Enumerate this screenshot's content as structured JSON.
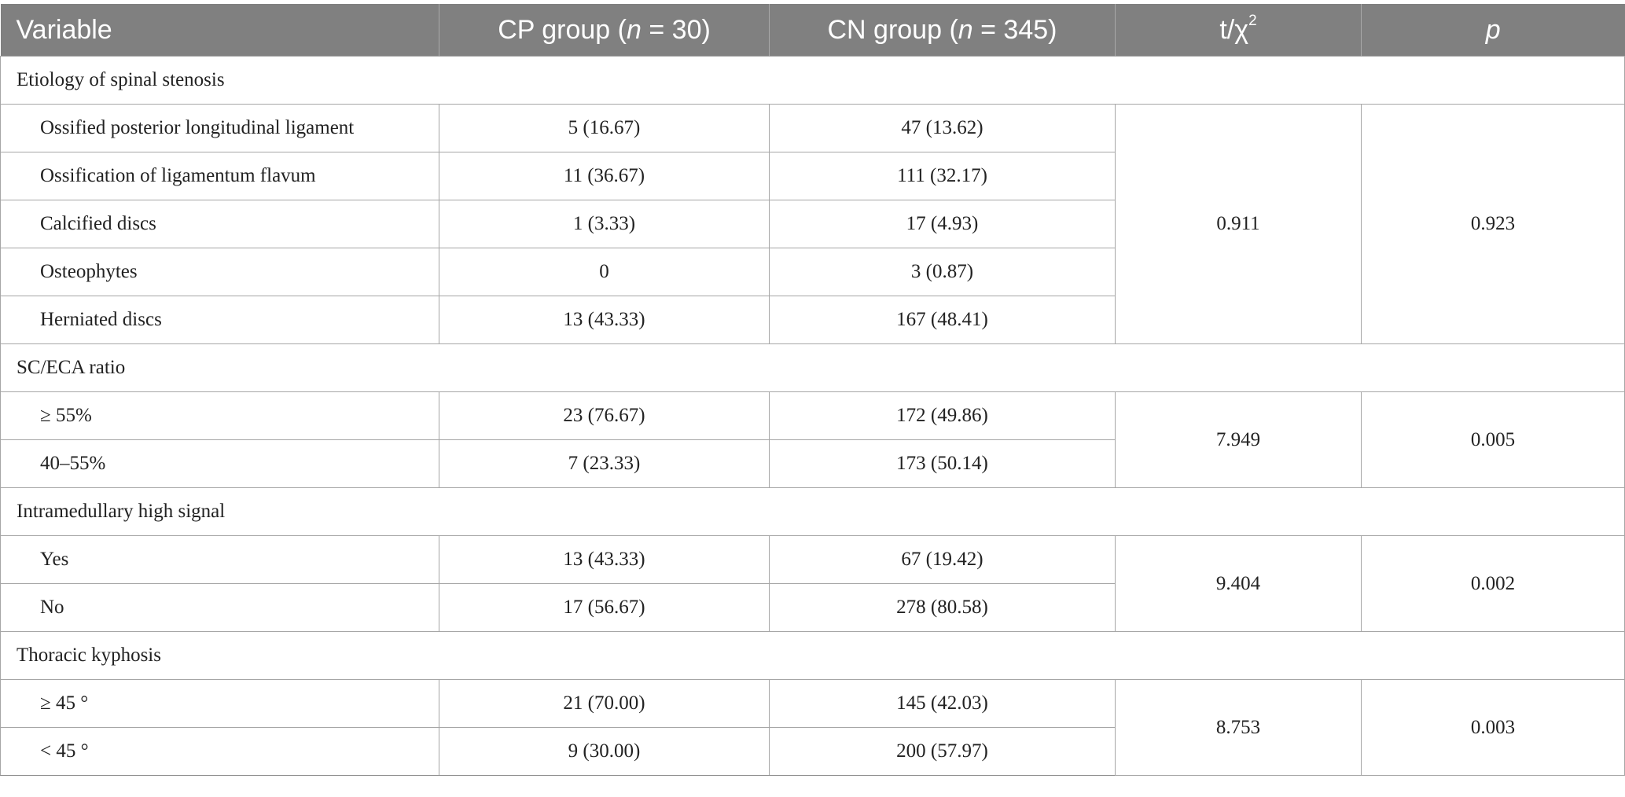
{
  "header": {
    "variable": "Variable",
    "cp_prefix": "CP group (",
    "cp_n": "n",
    "cp_suffix": " = 30)",
    "cn_prefix": "CN group (",
    "cn_n": "n",
    "cn_suffix": " = 345)",
    "stat_base": "t/χ",
    "stat_sup": "2",
    "p": "p"
  },
  "groups": [
    {
      "label": "Etiology of spinal stenosis",
      "stat": "0.911",
      "p": "0.923",
      "rows": [
        {
          "label": "Ossified posterior longitudinal ligament",
          "cp": "5 (16.67)",
          "cn": "47 (13.62)"
        },
        {
          "label": "Ossification of ligamentum flavum",
          "cp": "11 (36.67)",
          "cn": "111 (32.17)"
        },
        {
          "label": "Calcified discs",
          "cp": "1 (3.33)",
          "cn": "17 (4.93)"
        },
        {
          "label": "Osteophytes",
          "cp": "0",
          "cn": "3 (0.87)"
        },
        {
          "label": "Herniated discs",
          "cp": "13 (43.33)",
          "cn": "167 (48.41)"
        }
      ]
    },
    {
      "label": "SC/ECA ratio",
      "stat": "7.949",
      "p": "0.005",
      "rows": [
        {
          "label": "≥ 55%",
          "cp": "23 (76.67)",
          "cn": "172 (49.86)"
        },
        {
          "label": "40–55%",
          "cp": "7 (23.33)",
          "cn": "173 (50.14)"
        }
      ]
    },
    {
      "label": "Intramedullary high signal",
      "stat": "9.404",
      "p": "0.002",
      "rows": [
        {
          "label": "Yes",
          "cp": "13 (43.33)",
          "cn": "67 (19.42)"
        },
        {
          "label": "No",
          "cp": "17 (56.67)",
          "cn": "278 (80.58)"
        }
      ]
    },
    {
      "label": "Thoracic kyphosis",
      "stat": "8.753",
      "p": "0.003",
      "rows": [
        {
          "label": "≥ 45 °",
          "cp": "21 (70.00)",
          "cn": "145 (42.03)"
        },
        {
          "label": "< 45 °",
          "cp": "9 (30.00)",
          "cn": "200 (57.97)"
        }
      ]
    }
  ]
}
